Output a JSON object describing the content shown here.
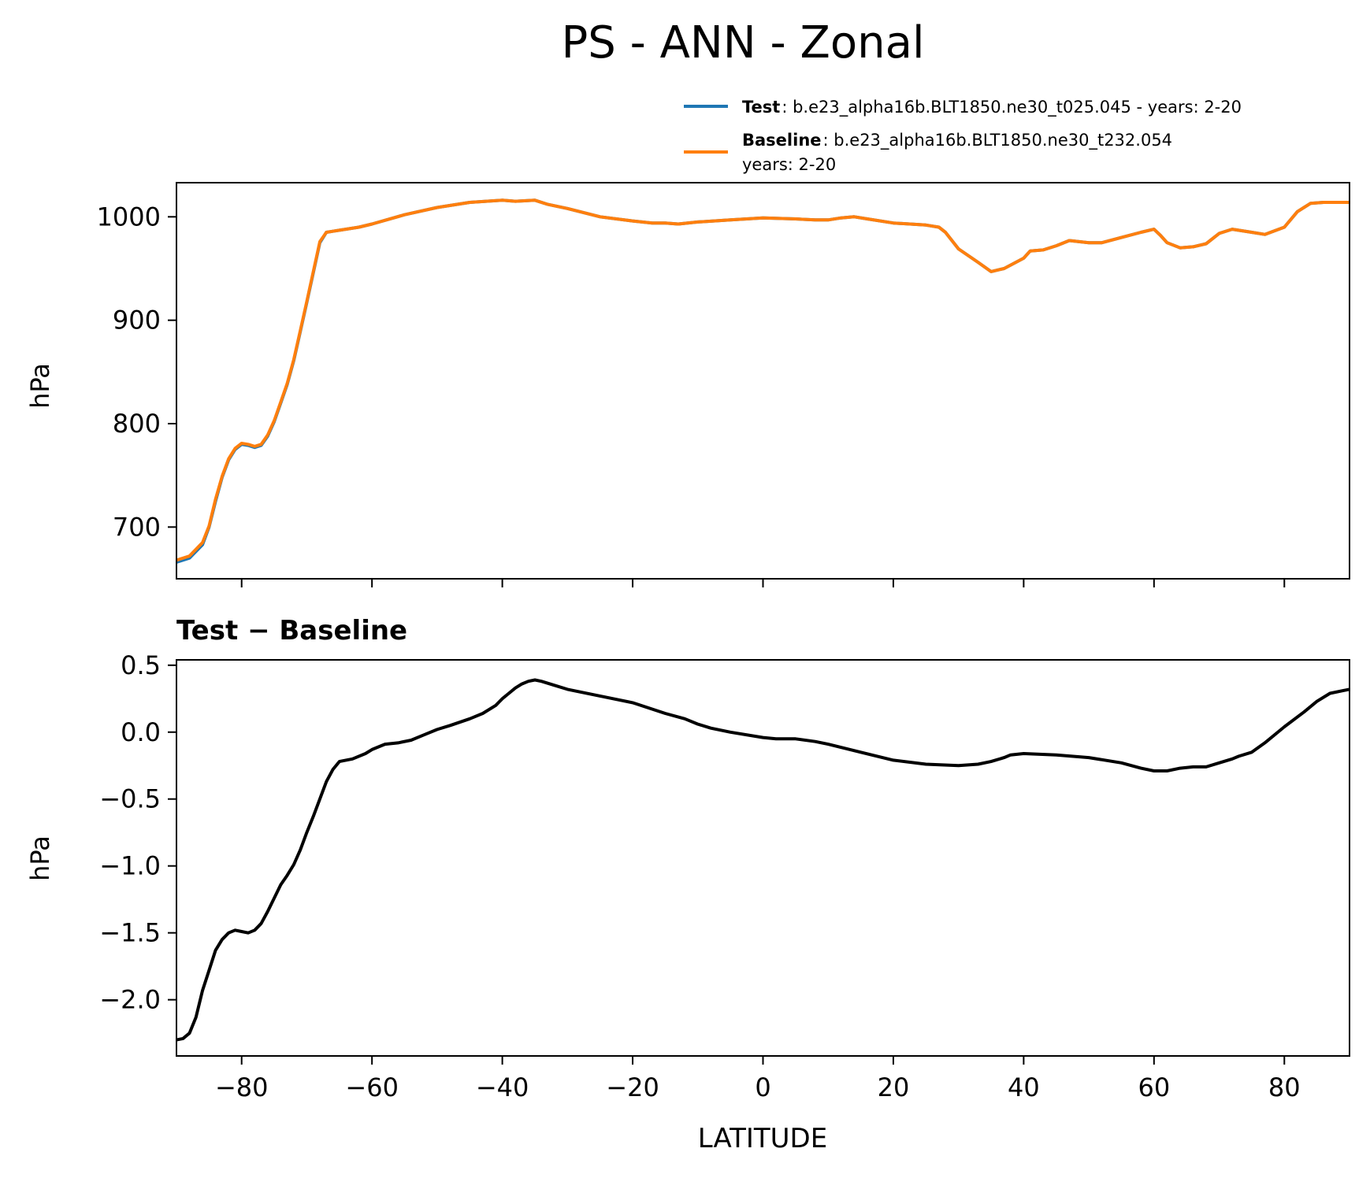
{
  "figure": {
    "title": "PS - ANN - Zonal"
  },
  "legend": {
    "placement": "top-right",
    "entries": [
      {
        "bold": "Test",
        "text": ": b.e23_alpha16b.BLT1850.ne30_t025.045 - years: 2-20",
        "text2": "",
        "color": "#1f77b4"
      },
      {
        "bold": "Baseline",
        "text": ": b.e23_alpha16b.BLT1850.ne30_t232.054",
        "text2": "years: 2-20",
        "color": "#ff7f0e"
      }
    ]
  },
  "chart_data": [
    {
      "type": "line",
      "title": "",
      "xlabel": "",
      "ylabel": "hPa",
      "xlim": [
        -90,
        90
      ],
      "ylim": [
        650,
        1033
      ],
      "xticks": [
        -80,
        -60,
        -40,
        -20,
        0,
        20,
        40,
        60,
        80
      ],
      "yticks": [
        700,
        800,
        900,
        1000
      ],
      "show_xticklabels": false,
      "grid": false,
      "series": [
        {
          "name": "Test",
          "color": "#1f77b4",
          "x": [
            -90,
            -88,
            -86,
            -85,
            -84,
            -83,
            -82,
            -81,
            -80,
            -79,
            -78,
            -77,
            -76,
            -75,
            -74,
            -73,
            -72,
            -71,
            -70,
            -69,
            -68,
            -67,
            -66,
            -65,
            -62,
            -60,
            -55,
            -50,
            -45,
            -40,
            -38,
            -35,
            -33,
            -30,
            -25,
            -20,
            -17,
            -15,
            -13,
            -10,
            -5,
            0,
            5,
            8,
            10,
            12,
            14,
            16,
            20,
            25,
            27,
            28,
            30,
            33,
            35,
            37,
            40,
            41,
            43,
            45,
            47,
            50,
            52,
            55,
            58,
            60,
            61,
            62,
            64,
            66,
            68,
            70,
            72,
            75,
            77,
            80,
            82,
            84,
            86,
            90
          ],
          "y": [
            666,
            670,
            683,
            700,
            725,
            748,
            765,
            775,
            780,
            779,
            777,
            779,
            788,
            802,
            820,
            838,
            861,
            889,
            917,
            946,
            975,
            985,
            986,
            987,
            990,
            993,
            1002,
            1009,
            1014,
            1016,
            1015,
            1016,
            1012,
            1008,
            1000,
            996,
            994,
            994,
            993,
            995,
            997,
            999,
            998,
            997,
            997,
            999,
            1000,
            998,
            994,
            992,
            990,
            985,
            969,
            956,
            947,
            950,
            960,
            967,
            968,
            972,
            977,
            975,
            975,
            980,
            985,
            988,
            982,
            975,
            970,
            971,
            974,
            984,
            988,
            985,
            983,
            990,
            1005,
            1013,
            1014,
            1014
          ]
        },
        {
          "name": "Baseline",
          "color": "#ff7f0e",
          "x": [
            -90,
            -88,
            -86,
            -85,
            -84,
            -83,
            -82,
            -81,
            -80,
            -79,
            -78,
            -77,
            -76,
            -75,
            -74,
            -73,
            -72,
            -71,
            -70,
            -69,
            -68,
            -67,
            -66,
            -65,
            -62,
            -60,
            -55,
            -50,
            -45,
            -40,
            -38,
            -35,
            -33,
            -30,
            -25,
            -20,
            -17,
            -15,
            -13,
            -10,
            -5,
            0,
            5,
            8,
            10,
            12,
            14,
            16,
            20,
            25,
            27,
            28,
            30,
            33,
            35,
            37,
            40,
            41,
            43,
            45,
            47,
            50,
            52,
            55,
            58,
            60,
            61,
            62,
            64,
            66,
            68,
            70,
            72,
            75,
            77,
            80,
            82,
            84,
            86,
            90
          ],
          "y": [
            668,
            672,
            685,
            701,
            727,
            749,
            766,
            776,
            781,
            780,
            778,
            780,
            789,
            803,
            821,
            839,
            862,
            890,
            918,
            947,
            976,
            985,
            986,
            987,
            990,
            993,
            1002,
            1009,
            1014,
            1016,
            1015,
            1016,
            1012,
            1008,
            1000,
            996,
            994,
            994,
            993,
            995,
            997,
            999,
            998,
            997,
            997,
            999,
            1000,
            998,
            994,
            992,
            990,
            985,
            969,
            956,
            947,
            950,
            960,
            967,
            968,
            972,
            977,
            975,
            975,
            980,
            985,
            988,
            982,
            975,
            970,
            971,
            974,
            984,
            988,
            985,
            983,
            990,
            1005,
            1013,
            1014,
            1014
          ]
        }
      ]
    },
    {
      "type": "line",
      "title": "Test − Baseline",
      "xlabel": "LATITUDE",
      "ylabel": "hPa",
      "xlim": [
        -90,
        90
      ],
      "ylim": [
        -2.42,
        0.54
      ],
      "xticks": [
        -80,
        -60,
        -40,
        -20,
        0,
        20,
        40,
        60,
        80
      ],
      "yticks": [
        -2.0,
        -1.5,
        -1.0,
        -0.5,
        0.0,
        0.5
      ],
      "show_xticklabels": true,
      "grid": false,
      "series": [
        {
          "name": "",
          "color": "#000000",
          "x": [
            -90,
            -89,
            -88,
            -87,
            -86,
            -85,
            -84,
            -83,
            -82,
            -81,
            -80,
            -79,
            -78,
            -77,
            -76,
            -75,
            -74,
            -73,
            -72,
            -71,
            -70,
            -69,
            -68,
            -67,
            -66,
            -65,
            -63,
            -61,
            -60,
            -59,
            -58,
            -56,
            -54,
            -52,
            -50,
            -48,
            -45,
            -43,
            -41,
            -40,
            -39,
            -38,
            -37,
            -36,
            -35,
            -34,
            -32,
            -30,
            -25,
            -20,
            -15,
            -12,
            -10,
            -8,
            -5,
            0,
            2,
            5,
            8,
            10,
            15,
            20,
            25,
            30,
            33,
            35,
            37,
            38,
            40,
            45,
            50,
            55,
            58,
            60,
            62,
            64,
            66,
            68,
            70,
            72,
            73,
            75,
            77,
            80,
            83,
            85,
            87,
            89,
            90
          ],
          "y": [
            -2.3,
            -2.29,
            -2.25,
            -2.13,
            -1.93,
            -1.78,
            -1.63,
            -1.55,
            -1.5,
            -1.48,
            -1.49,
            -1.5,
            -1.48,
            -1.43,
            -1.34,
            -1.24,
            -1.14,
            -1.07,
            -0.99,
            -0.88,
            -0.75,
            -0.63,
            -0.5,
            -0.37,
            -0.28,
            -0.22,
            -0.2,
            -0.16,
            -0.13,
            -0.11,
            -0.09,
            -0.08,
            -0.06,
            -0.02,
            0.02,
            0.05,
            0.1,
            0.14,
            0.2,
            0.25,
            0.29,
            0.33,
            0.36,
            0.38,
            0.39,
            0.38,
            0.35,
            0.32,
            0.27,
            0.22,
            0.14,
            0.1,
            0.06,
            0.03,
            0.0,
            -0.04,
            -0.05,
            -0.05,
            -0.07,
            -0.09,
            -0.15,
            -0.21,
            -0.24,
            -0.25,
            -0.24,
            -0.22,
            -0.19,
            -0.17,
            -0.16,
            -0.17,
            -0.19,
            -0.23,
            -0.27,
            -0.29,
            -0.29,
            -0.27,
            -0.26,
            -0.26,
            -0.23,
            -0.2,
            -0.18,
            -0.15,
            -0.08,
            0.04,
            0.15,
            0.23,
            0.29,
            0.31,
            0.32
          ]
        }
      ]
    }
  ]
}
